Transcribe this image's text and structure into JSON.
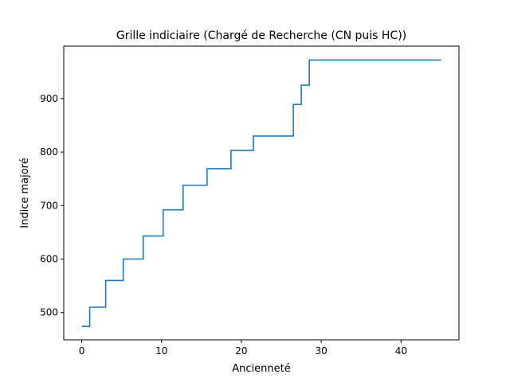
{
  "chart_data": {
    "type": "line",
    "drawstyle": "steps-post",
    "title": "Grille indiciaire (Chargé de Recherche (CN puis HC))",
    "xlabel": "Ancienneté",
    "ylabel": "Indice majoré",
    "xlim": [
      -2.25,
      47.25
    ],
    "ylim": [
      449,
      998
    ],
    "xticks": [
      0,
      10,
      20,
      30,
      40
    ],
    "yticks": [
      500,
      600,
      700,
      800,
      900
    ],
    "grid": false,
    "legend": false,
    "series": [
      {
        "color": "#1f77b4",
        "x": [
          0,
          1,
          3,
          5.2,
          7.7,
          10.2,
          12.7,
          15.7,
          18.7,
          21.5,
          26.5,
          27.5,
          28.5,
          45
        ],
        "y": [
          474,
          510,
          560,
          600,
          643,
          692,
          738,
          769,
          803,
          830,
          889,
          925,
          972,
          972
        ]
      }
    ]
  }
}
